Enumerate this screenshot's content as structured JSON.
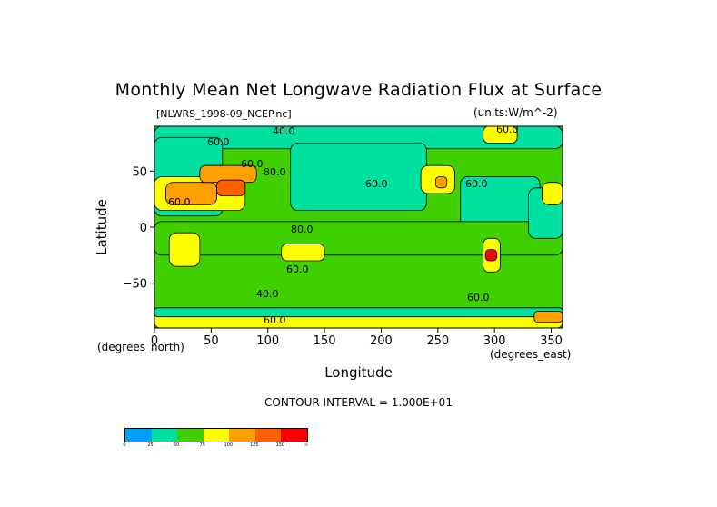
{
  "chart_data": {
    "type": "heatmap",
    "title": "Monthly Mean Net Longwave Radiation Flux at Surface",
    "file_label": "[NLWRS_1998-09_NCEP.nc]",
    "units_label": "(units:W/m^-2)",
    "xlabel": "Longitude",
    "ylabel": "Latitude",
    "x_unit": "(degrees_east)",
    "y_unit": "(degrees_north)",
    "xlim": [
      0,
      360
    ],
    "ylim": [
      -90,
      90
    ],
    "x_ticks": [
      0,
      50,
      100,
      150,
      200,
      250,
      300,
      350
    ],
    "y_ticks": [
      50,
      0,
      -50
    ],
    "x_tick_labels": [
      "0",
      "50",
      "100",
      "150",
      "200",
      "250",
      "300",
      "350"
    ],
    "y_tick_labels": [
      "50",
      "0",
      "−50"
    ],
    "contour_interval": "CONTOUR INTERVAL = 1.000E+01",
    "contour_labels": [
      "40.0",
      "60.0",
      "60.0",
      "80.0",
      "60.0",
      "60.0",
      "60.0",
      "80.0",
      "60.0",
      "40.0",
      "60.0",
      "60.0",
      "60.0"
    ],
    "colorbar": {
      "labels": [
        "0",
        "25",
        "50",
        "75",
        "100",
        "125",
        "150",
        "∞"
      ],
      "colors": [
        "#00a0ff",
        "#00e0a0",
        "#40d000",
        "#ffff00",
        "#ffa000",
        "#ff6000",
        "#ff0000"
      ]
    },
    "regions": [
      {
        "lon": [
          0,
          360
        ],
        "lat": [
          -90,
          90
        ],
        "level": 2
      },
      {
        "lon": [
          0,
          360
        ],
        "lat": [
          70,
          90
        ],
        "level": 1
      },
      {
        "lon": [
          0,
          60
        ],
        "lat": [
          10,
          80
        ],
        "level": 1
      },
      {
        "lon": [
          120,
          240
        ],
        "lat": [
          15,
          75
        ],
        "level": 1
      },
      {
        "lon": [
          270,
          340
        ],
        "lat": [
          0,
          45
        ],
        "level": 1
      },
      {
        "lon": [
          0,
          360
        ],
        "lat": [
          -25,
          5
        ],
        "level": 2
      },
      {
        "lon": [
          330,
          360
        ],
        "lat": [
          -10,
          35
        ],
        "level": 1
      },
      {
        "lon": [
          0,
          80
        ],
        "lat": [
          15,
          45
        ],
        "level": 3
      },
      {
        "lon": [
          10,
          55
        ],
        "lat": [
          20,
          40
        ],
        "level": 4
      },
      {
        "lon": [
          40,
          90
        ],
        "lat": [
          40,
          55
        ],
        "level": 4
      },
      {
        "lon": [
          55,
          80
        ],
        "lat": [
          28,
          42
        ],
        "level": 5
      },
      {
        "lon": [
          235,
          265
        ],
        "lat": [
          30,
          55
        ],
        "level": 3
      },
      {
        "lon": [
          248,
          258
        ],
        "lat": [
          35,
          45
        ],
        "level": 4
      },
      {
        "lon": [
          13,
          40
        ],
        "lat": [
          -35,
          -5
        ],
        "level": 3
      },
      {
        "lon": [
          112,
          150
        ],
        "lat": [
          -30,
          -15
        ],
        "level": 3
      },
      {
        "lon": [
          290,
          305
        ],
        "lat": [
          -40,
          -10
        ],
        "level": 3
      },
      {
        "lon": [
          292,
          302
        ],
        "lat": [
          -30,
          -20
        ],
        "level": 6
      },
      {
        "lon": [
          0,
          360
        ],
        "lat": [
          -90,
          -75
        ],
        "level": 3
      },
      {
        "lon": [
          0,
          360
        ],
        "lat": [
          -80,
          -72
        ],
        "level": 1
      },
      {
        "lon": [
          335,
          360
        ],
        "lat": [
          -85,
          -75
        ],
        "level": 4
      },
      {
        "lon": [
          290,
          320
        ],
        "lat": [
          75,
          90
        ],
        "level": 3
      },
      {
        "lon": [
          342,
          360
        ],
        "lat": [
          20,
          40
        ],
        "level": 3
      }
    ]
  }
}
